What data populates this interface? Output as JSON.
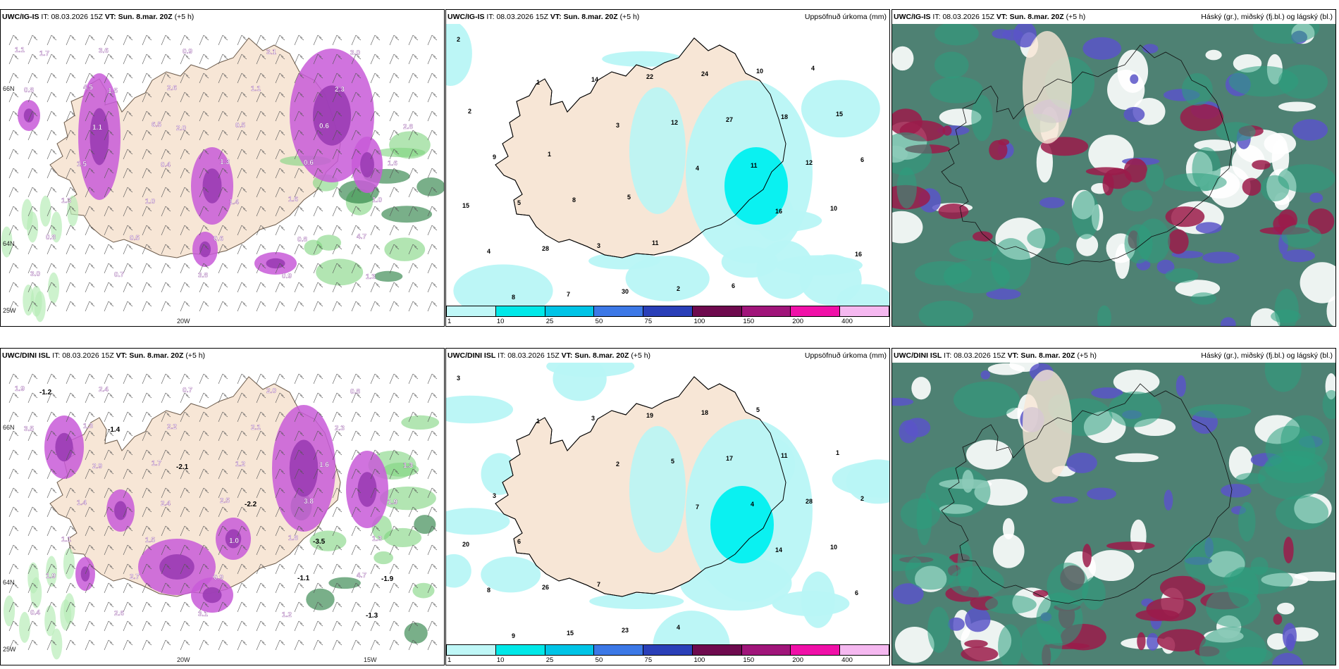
{
  "panels": [
    {
      "id": "p1",
      "model": "UWC/IG-IS",
      "it_label": "IT:",
      "it": "08.03.2026 15Z",
      "vt_label": "VT:",
      "vt": "Sun. 8.mar. 20Z",
      "lead": "(+5 h)",
      "title_right": ""
    },
    {
      "id": "p2",
      "model": "UWC/IG-IS",
      "it_label": "IT:",
      "it": "08.03.2026 15Z",
      "vt_label": "VT:",
      "vt": "Sun. 8.mar. 20Z",
      "lead": "(+5 h)",
      "title_right": "Uppsöfnuð úrkoma (mm)"
    },
    {
      "id": "p3",
      "model": "UWC/IG-IS",
      "it_label": "IT:",
      "it": "08.03.2026 15Z",
      "vt_label": "VT:",
      "vt": "Sun. 8.mar. 20Z",
      "lead": "(+5 h)",
      "title_right": "Háský (gr.), miðský (fj.bl.) og lágský (bl.)"
    },
    {
      "id": "p4",
      "model": "UWC/DINI ISL",
      "it_label": "IT:",
      "it": "08.03.2026 15Z",
      "vt_label": "VT:",
      "vt": "Sun. 8.mar. 20Z",
      "lead": "(+5 h)",
      "title_right": ""
    },
    {
      "id": "p5",
      "model": "UWC/DINI ISL",
      "it_label": "IT:",
      "it": "08.03.2026 15Z",
      "vt_label": "VT:",
      "vt": "Sun. 8.mar. 20Z",
      "lead": "(+5 h)",
      "title_right": "Uppsöfnuð úrkoma (mm)"
    },
    {
      "id": "p6",
      "model": "UWC/DINI ISL",
      "it_label": "IT:",
      "it": "08.03.2026 15Z",
      "vt_label": "VT:",
      "vt": "Sun. 8.mar. 20Z",
      "lead": "(+5 h)",
      "title_right": "Háský (gr.), miðský (fj.bl.) og lágský (bl.)"
    }
  ],
  "axis_labels": {
    "lat_66": "66N",
    "lat_64": "64N",
    "lon_25": "25W",
    "lon_20": "20W",
    "lon_15": "15W"
  },
  "colorbar": {
    "ticks": [
      "1",
      "10",
      "25",
      "50",
      "75",
      "100",
      "150",
      "200",
      "400"
    ],
    "colors": [
      "#bff7f7",
      "#00e8e8",
      "#00c4e6",
      "#3c78e6",
      "#2a3fb8",
      "#6e0a4e",
      "#a0157a",
      "#f010a8",
      "#f5b8f0"
    ]
  },
  "colors": {
    "land": "#f7e6d6",
    "precip_light": "#b8f5f5",
    "precip_mid": "#00f0f0",
    "snow": "#c85ad8",
    "cloud_low": "#2f6b5a",
    "cloud_mid": "#2c9e7e",
    "cloud_high": "#9b1b4a",
    "cloud_blue": "#5a55c8"
  },
  "values": {
    "p1": [
      "1.1",
      "4.5",
      "6.5",
      "1.3",
      "1.6",
      "4.7",
      "3.0",
      "3.6",
      "2.6",
      "0.5",
      "0.6",
      "1.0",
      "0.8",
      "0.7",
      "0.9",
      "1.1",
      "0.6",
      "1.6",
      "1.3",
      "0.5",
      "3.8",
      "3.1",
      "2.3",
      "2.8",
      "1.5",
      "1.0",
      "0.6",
      "0.9",
      "3.0",
      "0.8",
      "1.1",
      "0.4",
      "1.4",
      "0.8",
      "1.3",
      "1.7",
      "1.5",
      "2.0"
    ],
    "p2": [
      "2",
      "1",
      "3",
      "4",
      "16",
      "16",
      "8",
      "14",
      "12",
      "11",
      "10",
      "4",
      "7",
      "22",
      "27",
      "12",
      "15",
      "28",
      "30",
      "24",
      "18",
      "6",
      "5",
      "3",
      "2",
      "10",
      "15",
      "9",
      "8",
      "11",
      "6",
      "4",
      "2",
      "1",
      "5"
    ],
    "p4": [
      "1.9",
      "1.3",
      "1.7",
      "2.5",
      "1.8",
      "4.7",
      "0.4",
      "2.4",
      "2.2",
      "1.2",
      "3.8",
      "1.3",
      "1.9",
      "2.6",
      "0.7",
      "2.1",
      "1.6",
      "1.9",
      "1.1",
      "2.7",
      "3.1",
      "2.0",
      "2.3",
      "1.3",
      "1.4",
      "1.5",
      "0.9",
      "1.2",
      "0.8",
      "3.5",
      "2.9",
      "2.4",
      "1.0",
      "-1.1",
      "-1.3",
      "-1.2",
      "-1.4",
      "-2.1",
      "-2.2",
      "-3.5",
      "-1.9"
    ],
    "p5": [
      "3",
      "1",
      "2",
      "7",
      "14",
      "6",
      "9",
      "3",
      "5",
      "4",
      "10",
      "8",
      "15",
      "19",
      "17",
      "28",
      "20",
      "26",
      "23",
      "18",
      "11",
      "2",
      "6",
      "7",
      "4",
      "5",
      "1",
      "3"
    ]
  }
}
